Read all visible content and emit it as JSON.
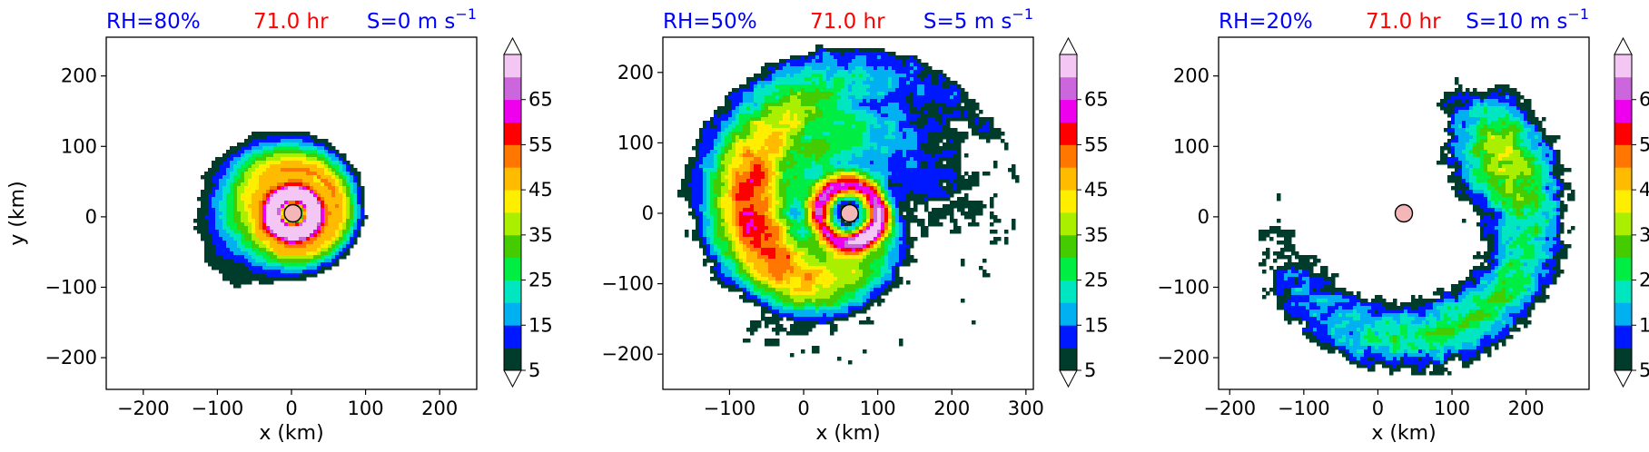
{
  "colors": {
    "rh_title": "#0000ff",
    "time_title": "#ff0000",
    "shear_title": "#0000ff",
    "center_marker": "#f4b6b6",
    "levels": [
      "#003c2c",
      "#0018ff",
      "#00b0f0",
      "#00e6c0",
      "#00ee44",
      "#44cc00",
      "#aaee00",
      "#ffee00",
      "#ffbb00",
      "#ff7700",
      "#ff0000",
      "#ee00ee",
      "#cc66dd",
      "#f4c6f4"
    ]
  },
  "colorbar": {
    "ticks": [
      "5",
      "15",
      "25",
      "35",
      "45",
      "55",
      "65"
    ],
    "boundaries": [
      5,
      10,
      15,
      20,
      25,
      30,
      35,
      40,
      45,
      50,
      55,
      60,
      65,
      70
    ],
    "extend": "both"
  },
  "chart_data": [
    {
      "type": "heatmap",
      "title_rh": "RH=80%",
      "title_time": "71.0 hr",
      "title_shear": "S=0 m s",
      "title_shear_exp": "−1",
      "xlabel": "x (km)",
      "ylabel": "y (km)",
      "xlim": [
        -250,
        250
      ],
      "ylim": [
        -245,
        255
      ],
      "xticks": [
        -200,
        -100,
        0,
        100,
        200
      ],
      "yticks": [
        -200,
        -100,
        0,
        100,
        200
      ],
      "xtick_labels": [
        "−200",
        "−100",
        "0",
        "100",
        "200"
      ],
      "ytick_labels": [
        "−200",
        "−100",
        "0",
        "100",
        "200"
      ],
      "center": [
        2,
        5
      ],
      "pattern": "compact-ring",
      "value_range": [
        5,
        70
      ]
    },
    {
      "type": "heatmap",
      "title_rh": "RH=50%",
      "title_time": "71.0 hr",
      "title_shear": "S=5 m s",
      "title_shear_exp": "−1",
      "xlabel": "x (km)",
      "ylabel": "",
      "xlim": [
        -190,
        310
      ],
      "ylim": [
        -250,
        250
      ],
      "xticks": [
        -100,
        0,
        100,
        200,
        300
      ],
      "yticks": [
        -200,
        -100,
        0,
        100,
        200
      ],
      "xtick_labels": [
        "−100",
        "0",
        "100",
        "200",
        "300"
      ],
      "ytick_labels": [
        "−200",
        "−100",
        "0",
        "100",
        "200"
      ],
      "center": [
        62,
        0
      ],
      "pattern": "spiral-bands",
      "value_range": [
        5,
        70
      ]
    },
    {
      "type": "heatmap",
      "title_rh": "RH=20%",
      "title_time": "71.0 hr",
      "title_shear": "S=10 m s",
      "title_shear_exp": "−1",
      "xlabel": "x (km)",
      "ylabel": "",
      "xlim": [
        -215,
        285
      ],
      "ylim": [
        -245,
        255
      ],
      "xticks": [
        -200,
        -100,
        0,
        100,
        200
      ],
      "yticks": [
        -200,
        -100,
        0,
        100,
        200
      ],
      "xtick_labels": [
        "−200",
        "−100",
        "0",
        "100",
        "200"
      ],
      "ytick_labels": [
        "−200",
        "−100",
        "0",
        "100",
        "200"
      ],
      "center": [
        35,
        5
      ],
      "pattern": "sheared-arc",
      "value_range": [
        5,
        70
      ]
    }
  ]
}
